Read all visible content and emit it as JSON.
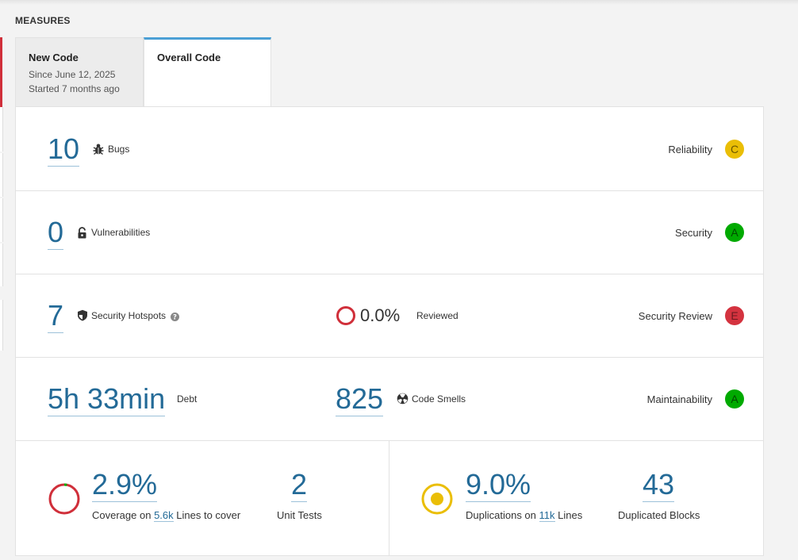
{
  "heading": "MEASURES",
  "tabs": {
    "new_code": {
      "title": "New Code",
      "since": "Since June 12, 2025",
      "started": "Started 7 months ago"
    },
    "overall_code": {
      "title": "Overall Code"
    }
  },
  "reliability": {
    "value": "10",
    "label": "Bugs",
    "rating_label": "Reliability",
    "rating": "C"
  },
  "security": {
    "value": "0",
    "label": "Vulnerabilities",
    "rating_label": "Security",
    "rating": "A"
  },
  "hotspots": {
    "value": "7",
    "label": "Security Hotspots",
    "reviewed_pct": "0.0%",
    "reviewed_label": "Reviewed",
    "rating_label": "Security Review",
    "rating": "E"
  },
  "maintainability": {
    "debt_value": "5h 33min",
    "debt_label": "Debt",
    "smells_value": "825",
    "smells_label": "Code Smells",
    "rating_label": "Maintainability",
    "rating": "A"
  },
  "coverage": {
    "value": "2.9%",
    "label_prefix": "Coverage on",
    "lines_value": "5.6k",
    "label_suffix": "Lines to cover",
    "unit_tests_value": "2",
    "unit_tests_label": "Unit Tests",
    "fraction": 0.029
  },
  "duplications": {
    "value": "9.0%",
    "label_prefix": "Duplications on",
    "lines_value": "11k",
    "label_suffix": "Lines",
    "blocks_value": "43",
    "blocks_label": "Duplicated Blocks"
  },
  "colors": {
    "link": "#236a97",
    "rating_c": "#eabe06",
    "rating_a": "#00aa00",
    "rating_e": "#d4333f",
    "tab_accent": "#4b9fd5"
  }
}
